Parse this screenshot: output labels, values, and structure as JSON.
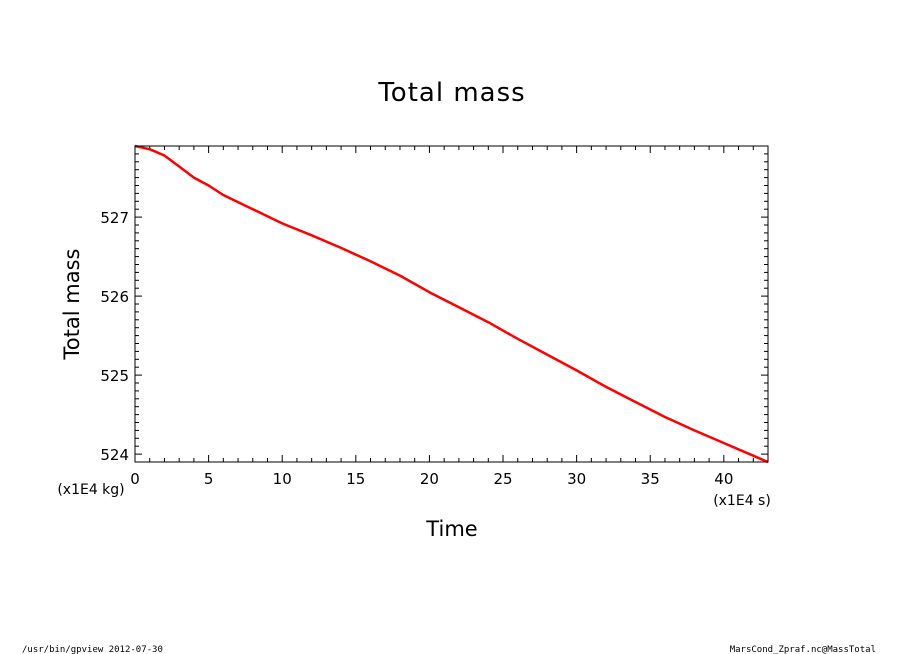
{
  "chart_data": {
    "type": "line",
    "title": "Total mass",
    "xlabel": "Time",
    "ylabel": "Total mass",
    "x_unit": "(x1E4 s)",
    "y_unit": "(x1E4 kg)",
    "xlim": [
      0,
      43
    ],
    "ylim": [
      523.9,
      527.9
    ],
    "x_ticks": [
      0,
      5,
      10,
      15,
      20,
      25,
      30,
      35,
      40
    ],
    "y_ticks": [
      524,
      525,
      526,
      527
    ],
    "grid": false,
    "series": [
      {
        "color": "#ff0000",
        "x": [
          0,
          1,
          2,
          3,
          4,
          5,
          6,
          8,
          10,
          12,
          14,
          16,
          18,
          20,
          22,
          24,
          26,
          28,
          30,
          32,
          34,
          36,
          38,
          40,
          42,
          43
        ],
        "y": [
          527.9,
          527.86,
          527.78,
          527.64,
          527.5,
          527.4,
          527.28,
          527.1,
          526.92,
          526.77,
          526.61,
          526.44,
          526.26,
          526.05,
          525.86,
          525.67,
          525.46,
          525.26,
          525.06,
          524.85,
          524.66,
          524.47,
          524.3,
          524.14,
          523.98,
          523.9
        ]
      }
    ]
  },
  "footer": {
    "left": "/usr/bin/gpview  2012-07-30",
    "right": "MarsCond_Zpraf.nc@MassTotal"
  }
}
